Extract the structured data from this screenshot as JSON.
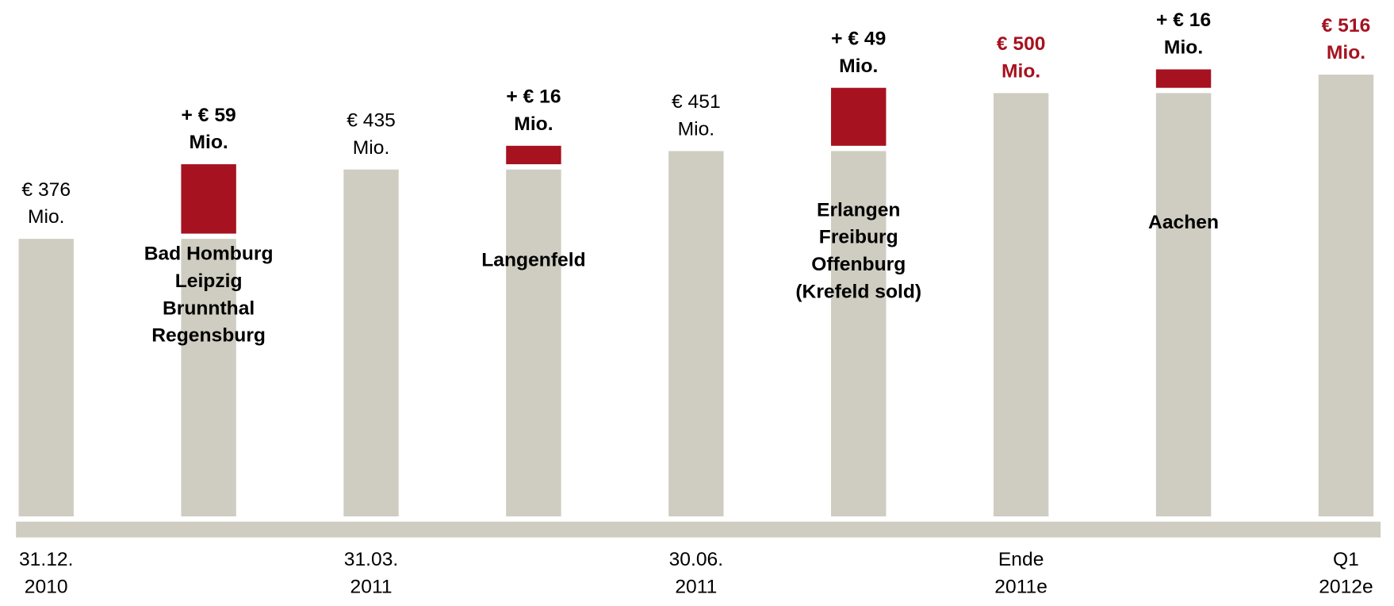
{
  "chart_data": {
    "type": "waterfall",
    "categories": [
      "31.12.\n2010",
      null,
      "31.03.\n2011",
      null,
      "30.06.\n2011",
      null,
      "Ende\n2011e",
      null,
      "Q1\n2012e"
    ],
    "values": [
      376,
      59,
      435,
      16,
      451,
      49,
      500,
      16,
      516
    ],
    "value_labels": [
      "€ 376\nMio.",
      "+ € 59\nMio.",
      "€ 435\nMio.",
      "+ € 16\nMio.",
      "€ 451\nMio.",
      "+ € 49\nMio.",
      "€ 500\nMio.",
      "+ € 16\nMio.",
      "€ 516\nMio."
    ],
    "measure": [
      "total",
      "relative",
      "total",
      "relative",
      "total",
      "relative",
      "total",
      "relative",
      "total"
    ],
    "annotations": [
      null,
      "Bad Homburg\nLeipzig\nBrunnthal\nRegensburg",
      null,
      "Langenfeld",
      null,
      "Erlangen\nFreiburg\nOffenburg\n(Krefeld sold)",
      null,
      "Aachen",
      null
    ],
    "colors": {
      "total": "#cfcdc1",
      "relative": "#a6121f"
    },
    "value_label_colors": [
      "#000000",
      "#000000",
      "#000000",
      "#000000",
      "#000000",
      "#000000",
      "#a6121f",
      "#000000",
      "#a6121f"
    ],
    "ylim": [
      140,
      530
    ]
  }
}
